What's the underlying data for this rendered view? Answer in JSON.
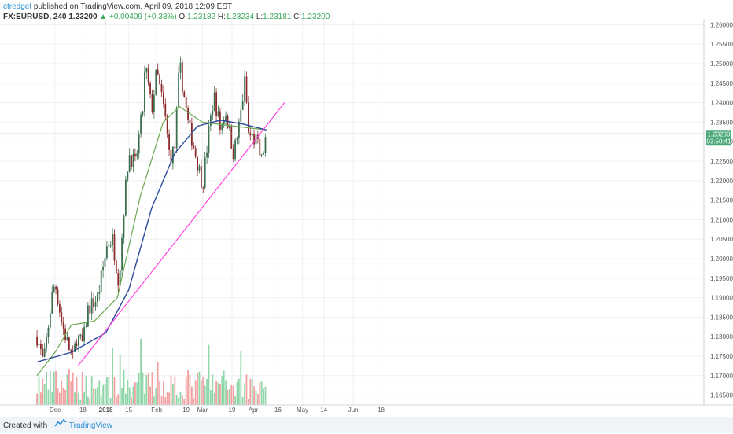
{
  "header": {
    "author": "ctredget",
    "published_text": "published on TradingView.com, April 09, 2018 12:09 EST"
  },
  "symbol_line": {
    "symbol": "FX:EURUSD, 240",
    "last": "1.23200",
    "change_arrow": "▲",
    "change": "+0.00409 (+0.33%)",
    "o_label": "O:",
    "o_value": "1.23182",
    "h_label": "H:",
    "h_value": "1.23234",
    "l_label": "L:",
    "l_value": "1.23181",
    "c_label": "C:",
    "c_value": "1.23200"
  },
  "price_badge": {
    "price": "1.23200",
    "countdown": "03:50:41"
  },
  "footer": {
    "created_with": "Created with",
    "brand": "TradingView"
  },
  "colors": {
    "up_candle": "#3b6e4f",
    "down_candle": "#8b2a2a",
    "sma_green": "#6aa84f",
    "sma_blue": "#2c4b9b",
    "trendline": "#ff44e0",
    "volume_up": "#8fd6a8",
    "volume_down": "#f2a0a0",
    "badge": "#4aa87a"
  },
  "chart_data": {
    "type": "candlestick",
    "y_ticks": [
      "1.26000",
      "1.25500",
      "1.25000",
      "1.24500",
      "1.24000",
      "1.23500",
      "1.23000",
      "1.22500",
      "1.22000",
      "1.21500",
      "1.21000",
      "1.20500",
      "1.20000",
      "1.19500",
      "1.19000",
      "1.18500",
      "1.18000",
      "1.17500",
      "1.17000",
      "1.16500"
    ],
    "x_ticks": [
      "Dec",
      "18",
      "2018",
      "15",
      "Feb",
      "19",
      "Mar",
      "19",
      "Apr",
      "16",
      "May",
      "14",
      "Jun",
      "18"
    ],
    "ylim": [
      1.1625,
      1.2615
    ],
    "price_path": [
      {
        "date": "2017-11-20",
        "price": 1.18
      },
      {
        "date": "2017-11-24",
        "price": 1.173
      },
      {
        "date": "2017-11-29",
        "price": 1.19
      },
      {
        "date": "2017-12-01",
        "price": 1.194
      },
      {
        "date": "2017-12-05",
        "price": 1.184
      },
      {
        "date": "2017-12-08",
        "price": 1.179
      },
      {
        "date": "2017-12-12",
        "price": 1.174
      },
      {
        "date": "2017-12-14",
        "price": 1.18
      },
      {
        "date": "2017-12-18",
        "price": 1.178
      },
      {
        "date": "2017-12-21",
        "price": 1.187
      },
      {
        "date": "2017-12-27",
        "price": 1.19
      },
      {
        "date": "2018-01-02",
        "price": 1.204
      },
      {
        "date": "2018-01-05",
        "price": 1.205
      },
      {
        "date": "2018-01-09",
        "price": 1.194
      },
      {
        "date": "2018-01-12",
        "price": 1.213
      },
      {
        "date": "2018-01-15",
        "price": 1.227
      },
      {
        "date": "2018-01-19",
        "price": 1.224
      },
      {
        "date": "2018-01-24",
        "price": 1.24
      },
      {
        "date": "2018-01-25",
        "price": 1.25
      },
      {
        "date": "2018-01-29",
        "price": 1.238
      },
      {
        "date": "2018-02-01",
        "price": 1.248
      },
      {
        "date": "2018-02-06",
        "price": 1.237
      },
      {
        "date": "2018-02-09",
        "price": 1.226
      },
      {
        "date": "2018-02-12",
        "price": 1.228
      },
      {
        "date": "2018-02-15",
        "price": 1.25
      },
      {
        "date": "2018-02-20",
        "price": 1.235
      },
      {
        "date": "2018-02-23",
        "price": 1.23
      },
      {
        "date": "2018-03-01",
        "price": 1.219
      },
      {
        "date": "2018-03-05",
        "price": 1.233
      },
      {
        "date": "2018-03-08",
        "price": 1.242
      },
      {
        "date": "2018-03-12",
        "price": 1.233
      },
      {
        "date": "2018-03-15",
        "price": 1.238
      },
      {
        "date": "2018-03-20",
        "price": 1.227
      },
      {
        "date": "2018-03-23",
        "price": 1.233
      },
      {
        "date": "2018-03-27",
        "price": 1.246
      },
      {
        "date": "2018-03-29",
        "price": 1.232
      },
      {
        "date": "2018-04-03",
        "price": 1.23
      },
      {
        "date": "2018-04-06",
        "price": 1.225
      },
      {
        "date": "2018-04-09",
        "price": 1.232
      }
    ],
    "sma_green": [
      {
        "date": "2017-11-20",
        "price": 1.17
      },
      {
        "date": "2017-12-01",
        "price": 1.176
      },
      {
        "date": "2017-12-11",
        "price": 1.183
      },
      {
        "date": "2017-12-25",
        "price": 1.184
      },
      {
        "date": "2018-01-08",
        "price": 1.19
      },
      {
        "date": "2018-01-22",
        "price": 1.216
      },
      {
        "date": "2018-02-05",
        "price": 1.235
      },
      {
        "date": "2018-02-15",
        "price": 1.239
      },
      {
        "date": "2018-03-01",
        "price": 1.235
      },
      {
        "date": "2018-03-20",
        "price": 1.234
      },
      {
        "date": "2018-04-09",
        "price": 1.233
      }
    ],
    "sma_blue": [
      {
        "date": "2017-11-20",
        "price": 1.1735
      },
      {
        "date": "2017-12-11",
        "price": 1.176
      },
      {
        "date": "2018-01-01",
        "price": 1.181
      },
      {
        "date": "2018-01-15",
        "price": 1.192
      },
      {
        "date": "2018-01-29",
        "price": 1.213
      },
      {
        "date": "2018-02-12",
        "price": 1.227
      },
      {
        "date": "2018-02-26",
        "price": 1.234
      },
      {
        "date": "2018-03-12",
        "price": 1.2355
      },
      {
        "date": "2018-03-26",
        "price": 1.2345
      },
      {
        "date": "2018-04-09",
        "price": 1.233
      }
    ],
    "trendline": {
      "start": {
        "date": "2017-12-15",
        "price": 1.1725
      },
      "end": {
        "date": "2018-04-20",
        "price": 1.24
      }
    },
    "last_price": 1.232
  }
}
